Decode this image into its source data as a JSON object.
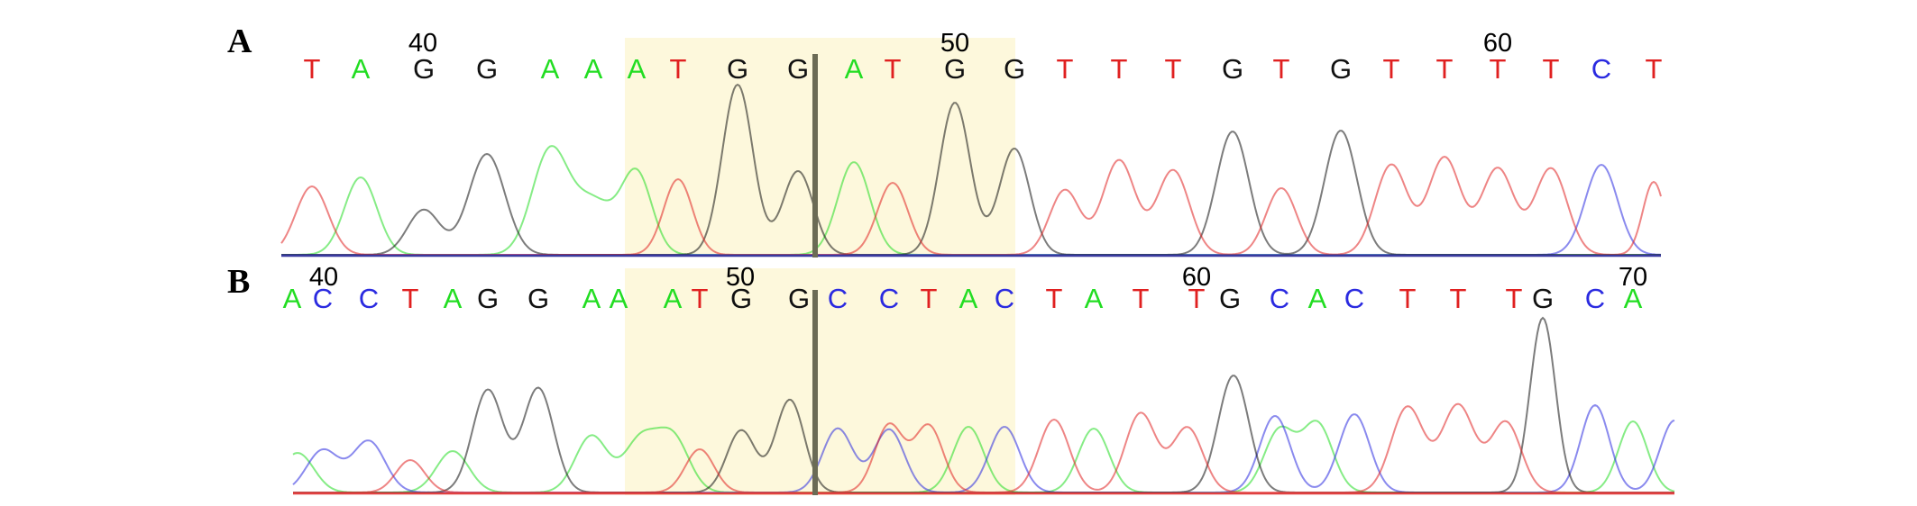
{
  "colors": {
    "A": "#22dd22",
    "C": "#2a2ae0",
    "G": "#111111",
    "T": "#e02020",
    "highlight": "#fdf8dc",
    "cut_line": "#6b6b55",
    "baseline": "#3a3aa0"
  },
  "panels": [
    {
      "label": "A",
      "bases": [
        "T",
        "A",
        "G",
        "G",
        "A",
        "A",
        "A",
        "T",
        "G",
        "G",
        "A",
        "T",
        "G",
        "G",
        "T",
        "T",
        "T",
        "G",
        "T",
        "G",
        "T",
        "T",
        "T",
        "T",
        "C",
        "T"
      ],
      "position_labels": [
        "40",
        "50",
        "60"
      ]
    },
    {
      "label": "B",
      "bases": [
        "A",
        "C",
        "C",
        "T",
        "A",
        "G",
        "G",
        "A",
        "A",
        "A",
        "T",
        "G",
        "G",
        "C",
        "C",
        "T",
        "A",
        "C",
        "T",
        "A",
        "T",
        "T",
        "G",
        "C",
        "A",
        "C",
        "T",
        "T",
        "T",
        "G",
        "C",
        "A"
      ],
      "position_labels": [
        "40",
        "50",
        "60",
        "70"
      ]
    }
  ]
}
